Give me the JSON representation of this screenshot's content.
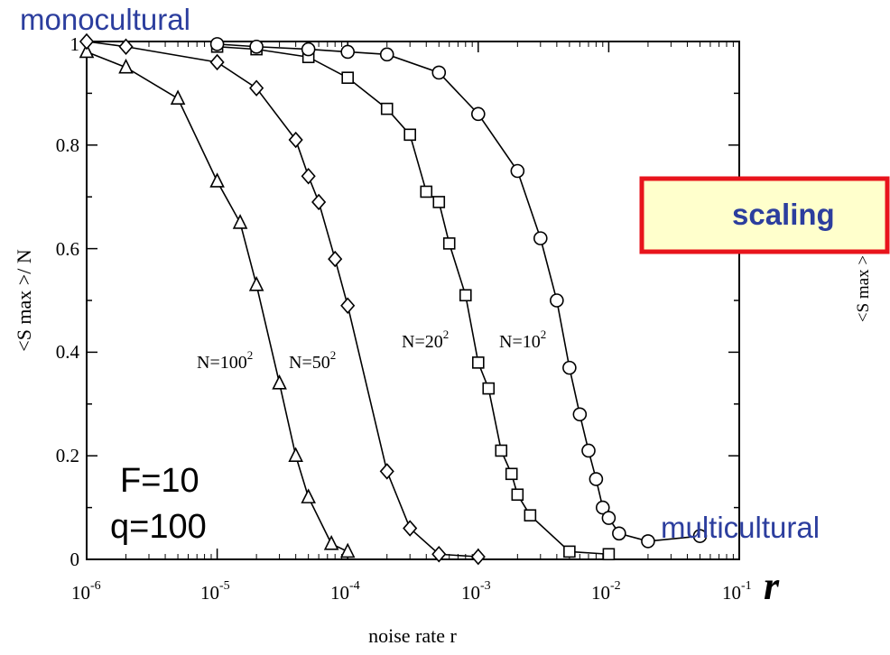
{
  "slide": {
    "label_top": "monocultural",
    "label_bottom": "multicultural",
    "params_line1": "F=10",
    "params_line2": "q=100",
    "r_symbol": "r",
    "scaling_box": "scaling",
    "scaling_box_fill": "#ffffcc",
    "scaling_box_border": "#e8141c",
    "scaling_box_text_color": "#2c3e9e",
    "slide_text_color": "#2c3e9e",
    "cropped_ylabel_fragment": "<S max >"
  },
  "chart_data": {
    "type": "line",
    "xscale": "log",
    "xlim": [
      1e-06,
      0.1
    ],
    "ylim": [
      0,
      1
    ],
    "xlabel": "noise rate r",
    "ylabel": "<S max >/ N",
    "xticks": [
      {
        "base": "10",
        "exp": "-6"
      },
      {
        "base": "10",
        "exp": "-5"
      },
      {
        "base": "10",
        "exp": "-4"
      },
      {
        "base": "10",
        "exp": "-3"
      },
      {
        "base": "10",
        "exp": "-2"
      },
      {
        "base": "10",
        "exp": "-1"
      }
    ],
    "yticks": [
      "0",
      "0.2",
      "0.4",
      "0.6",
      "0.8",
      "1"
    ],
    "legend": "none",
    "grid": false,
    "series": [
      {
        "name": "N=100²",
        "label_base": "N=100",
        "label_exp": "2",
        "marker": "triangle",
        "x": [
          1e-06,
          2e-06,
          5e-06,
          1e-05,
          1.5e-05,
          2e-05,
          3e-05,
          4e-05,
          5e-05,
          7.5e-05,
          0.0001
        ],
        "y": [
          0.98,
          0.95,
          0.89,
          0.73,
          0.65,
          0.53,
          0.34,
          0.2,
          0.12,
          0.03,
          0.015
        ]
      },
      {
        "name": "N=50²",
        "label_base": "N=50",
        "label_exp": "2",
        "marker": "diamond",
        "x": [
          1e-06,
          2e-06,
          1e-05,
          2e-05,
          4e-05,
          5e-05,
          6e-05,
          8e-05,
          0.0001,
          0.0002,
          0.0003,
          0.0005,
          0.001
        ],
        "y": [
          1.0,
          0.99,
          0.96,
          0.91,
          0.81,
          0.74,
          0.69,
          0.58,
          0.49,
          0.17,
          0.06,
          0.01,
          0.005
        ]
      },
      {
        "name": "N=20²",
        "label_base": "N=20",
        "label_exp": "2",
        "marker": "square",
        "x": [
          1e-05,
          2e-05,
          5e-05,
          0.0001,
          0.0002,
          0.0003,
          0.0004,
          0.0005,
          0.0006,
          0.0008,
          0.001,
          0.0012,
          0.0015,
          0.0018,
          0.002,
          0.0025,
          0.005,
          0.01
        ],
        "y": [
          0.99,
          0.985,
          0.97,
          0.93,
          0.87,
          0.82,
          0.71,
          0.69,
          0.61,
          0.51,
          0.38,
          0.33,
          0.21,
          0.165,
          0.125,
          0.085,
          0.015,
          0.01
        ]
      },
      {
        "name": "N=10²",
        "label_base": "N=10",
        "label_exp": "2",
        "marker": "circle",
        "x": [
          1e-05,
          2e-05,
          5e-05,
          0.0001,
          0.0002,
          0.0005,
          0.001,
          0.002,
          0.003,
          0.004,
          0.005,
          0.006,
          0.007,
          0.008,
          0.009,
          0.01,
          0.012,
          0.02,
          0.05
        ],
        "y": [
          0.995,
          0.99,
          0.985,
          0.98,
          0.975,
          0.94,
          0.86,
          0.75,
          0.62,
          0.5,
          0.37,
          0.28,
          0.21,
          0.155,
          0.1,
          0.08,
          0.05,
          0.035,
          0.045
        ]
      }
    ]
  }
}
